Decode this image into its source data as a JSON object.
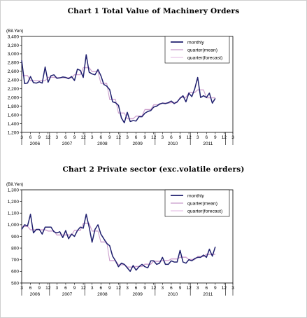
{
  "chart_data": [
    {
      "type": "line",
      "title": "Chart 1 Total Value of Machinery Orders",
      "unit": "(Bil.Yen)",
      "ylim": [
        1200,
        3400
      ],
      "yticks": [
        1200,
        1400,
        1600,
        1800,
        2000,
        2200,
        2400,
        2600,
        2800,
        3000,
        3200,
        3400
      ],
      "ytick_labels": [
        "1,200",
        "1,400",
        "1,600",
        "1,800",
        "2,000",
        "2,200",
        "2,400",
        "2,600",
        "2,800",
        "3,000",
        "3,200",
        "3,400"
      ],
      "month_tick_labels": [
        "3",
        "6",
        "9",
        "12",
        "3",
        "6",
        "9",
        "12",
        "3",
        "6",
        "9",
        "12",
        "3",
        "6",
        "9",
        "12",
        "3",
        "6",
        "9",
        "12",
        "3",
        "6",
        "9",
        "12",
        "3"
      ],
      "year_labels": [
        "2006",
        "2007",
        "2008",
        "2009",
        "2010",
        "2011"
      ],
      "legend": [
        "monthly",
        "quarter(mean)",
        "quarter(forecast)"
      ],
      "legend_position": "top-right",
      "grid": false,
      "series": [
        {
          "name": "monthly",
          "color": "#1f1f6e",
          "values": [
            2850,
            2320,
            2330,
            2480,
            2340,
            2330,
            2360,
            2330,
            2700,
            2350,
            2500,
            2520,
            2440,
            2450,
            2470,
            2460,
            2430,
            2480,
            2390,
            2650,
            2620,
            2460,
            2980,
            2580,
            2540,
            2520,
            2640,
            2500,
            2300,
            2260,
            2180,
            1900,
            1880,
            1820,
            1530,
            1420,
            1660,
            1450,
            1470,
            1460,
            1560,
            1560,
            1640,
            1680,
            1700,
            1780,
            1800,
            1850,
            1870,
            1860,
            1880,
            1920,
            1860,
            1900,
            1980,
            2040,
            1900,
            2100,
            2020,
            2200,
            2460,
            2000,
            2040,
            2000,
            2100,
            1870,
            1980
          ]
        },
        {
          "name": "quarter(mean)",
          "color": "#c79ac9",
          "values": [
            2500,
            2500,
            2500,
            2380,
            2380,
            2380,
            2380,
            2380,
            2380,
            2460,
            2460,
            2460,
            2450,
            2450,
            2450,
            2450,
            2450,
            2450,
            2520,
            2520,
            2520,
            2680,
            2680,
            2680,
            2590,
            2590,
            2590,
            2320,
            2320,
            2320,
            1950,
            1950,
            1950,
            1640,
            1640,
            1640,
            1510,
            1510,
            1510,
            1570,
            1570,
            1570,
            1720,
            1720,
            1720,
            1830,
            1830,
            1830,
            1870,
            1870,
            1870,
            1880,
            1880,
            1880,
            2000,
            2000,
            2000,
            2110,
            2110,
            2110,
            2170,
            2170,
            2170,
            1990,
            1990,
            1990,
            1990
          ]
        },
        {
          "name": "quarter(forecast)",
          "color": "#e6c3e6",
          "values": [
            2510,
            2510,
            2510,
            2390,
            2390,
            2390,
            2390,
            2390,
            2390,
            2470,
            2470,
            2470,
            2460,
            2460,
            2460,
            2460,
            2460,
            2460,
            2530,
            2530,
            2530,
            2690,
            2690,
            2690,
            2600,
            2600,
            2600,
            2330,
            2330,
            2330,
            1960,
            1960,
            1960,
            1650,
            1650,
            1650,
            1520,
            1520,
            1520,
            1580,
            1580,
            1580,
            1730,
            1730,
            1730,
            1840,
            1840,
            1840,
            1880,
            1880,
            1880,
            1890,
            1890,
            1890,
            2010,
            2010,
            2010,
            2120,
            2120,
            2120,
            2180,
            2180,
            2180,
            2000,
            2000,
            2000,
            2000
          ]
        }
      ]
    },
    {
      "type": "line",
      "title": "Chart 2 Private sector (exc.volatile orders)",
      "unit": "(Bil.Yen)",
      "ylim": [
        500,
        1300
      ],
      "yticks": [
        500,
        600,
        700,
        800,
        900,
        1000,
        1100,
        1200,
        1300
      ],
      "ytick_labels": [
        "500",
        "600",
        "700",
        "800",
        "900",
        "1,000",
        "1,100",
        "1,200",
        "1,300"
      ],
      "month_tick_labels": [
        "3",
        "6",
        "9",
        "12",
        "3",
        "6",
        "9",
        "12",
        "3",
        "6",
        "9",
        "12",
        "3",
        "6",
        "9",
        "12",
        "3",
        "6",
        "9",
        "12",
        "3",
        "6",
        "9",
        "12",
        "3"
      ],
      "year_labels": [
        "2006",
        "2007",
        "2008",
        "2009",
        "2010",
        "2011"
      ],
      "legend": [
        "monthly",
        "quarter(mean)",
        "quarter(forecast)"
      ],
      "legend_position": "top-right",
      "grid": false,
      "series": [
        {
          "name": "monthly",
          "color": "#1f1f6e",
          "values": [
            960,
            1000,
            990,
            1090,
            930,
            960,
            960,
            920,
            980,
            980,
            980,
            940,
            930,
            940,
            890,
            950,
            880,
            920,
            900,
            950,
            980,
            970,
            1090,
            980,
            850,
            960,
            1000,
            920,
            880,
            840,
            820,
            730,
            690,
            640,
            670,
            660,
            630,
            600,
            650,
            610,
            640,
            660,
            640,
            630,
            690,
            690,
            660,
            670,
            720,
            660,
            660,
            690,
            680,
            680,
            780,
            680,
            670,
            700,
            690,
            710,
            720,
            720,
            740,
            720,
            790,
            730,
            810
          ]
        },
        {
          "name": "quarter(mean)",
          "color": "#c79ac9",
          "values": [
            985,
            985,
            985,
            955,
            955,
            955,
            955,
            955,
            955,
            945,
            945,
            945,
            910,
            910,
            910,
            910,
            910,
            910,
            950,
            950,
            950,
            1010,
            1010,
            1010,
            945,
            945,
            945,
            850,
            850,
            850,
            690,
            690,
            690,
            655,
            655,
            655,
            635,
            635,
            635,
            640,
            640,
            640,
            660,
            660,
            660,
            685,
            685,
            685,
            690,
            690,
            690,
            705,
            705,
            705,
            720,
            720,
            720,
            700,
            700,
            700,
            725,
            725,
            725,
            745,
            745,
            745,
            745
          ]
        },
        {
          "name": "quarter(forecast)",
          "color": "#e6c3e6",
          "values": [
            990,
            990,
            990,
            960,
            960,
            960,
            960,
            960,
            960,
            950,
            950,
            950,
            915,
            915,
            915,
            915,
            915,
            915,
            955,
            955,
            955,
            1015,
            1015,
            1015,
            950,
            950,
            950,
            855,
            855,
            855,
            695,
            695,
            695,
            660,
            660,
            660,
            640,
            640,
            640,
            645,
            645,
            645,
            665,
            665,
            665,
            690,
            690,
            690,
            695,
            695,
            695,
            710,
            710,
            710,
            725,
            725,
            725,
            705,
            705,
            705,
            730,
            730,
            730,
            750,
            750,
            750,
            750
          ]
        }
      ]
    }
  ]
}
